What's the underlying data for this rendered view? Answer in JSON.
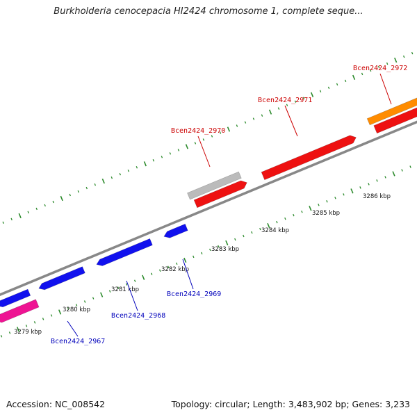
{
  "title": "Burkholderia cenocepacia HI2424 chromosome 1, complete seque...",
  "footer": {
    "accession": "Accession: NC_008542",
    "topology": "Topology: circular; Length: 3,483,902 bp; Genes: 3,233"
  },
  "colors": {
    "backbone": "#888888",
    "tick": "#2b8a2b",
    "forward_gene": "#ee1111",
    "reverse_gene": "#1111ee",
    "label_forward": "#cc0000",
    "label_reverse": "#0000bb"
  },
  "kbp_labels": [
    "3279 kbp",
    "3280 kbp",
    "3281 kbp",
    "3282 kbp",
    "3283 kbp",
    "3284 kbp",
    "3285 kbp",
    "3286 kbp"
  ],
  "genes": [
    {
      "name": "Bcen2424_2967",
      "strand": "reverse"
    },
    {
      "name": "Bcen2424_2968",
      "strand": "reverse"
    },
    {
      "name": "Bcen2424_2969",
      "strand": "reverse"
    },
    {
      "name": "Bcen2424_2970",
      "strand": "forward"
    },
    {
      "name": "Bcen2424_2971",
      "strand": "forward"
    },
    {
      "name": "Bcen2424_2972",
      "strand": "forward"
    }
  ]
}
